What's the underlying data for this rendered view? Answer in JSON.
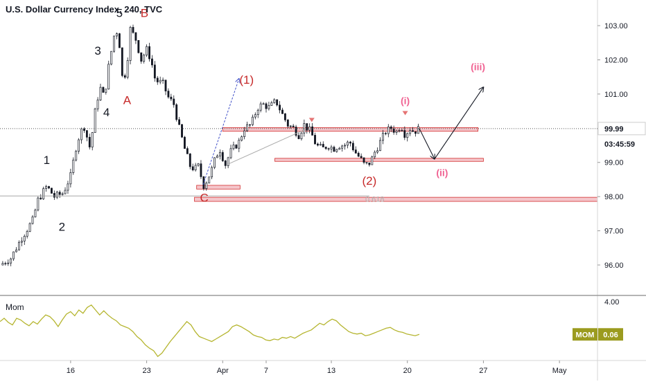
{
  "chart_data": {
    "type": "candlestick",
    "title": "U.S. Dollar Currency Index, 240, TVC",
    "price_axis": {
      "ticks": [
        "103.00",
        "102.00",
        "101.00",
        "99.00",
        "98.00",
        "97.00",
        "96.00"
      ],
      "tick_values": [
        103,
        102,
        101,
        99,
        98,
        97,
        96
      ],
      "ylim": [
        95.15,
        103.75
      ]
    },
    "last_price": {
      "value": 99.99,
      "label": "99.99",
      "countdown": "03:45:59"
    },
    "x_axis": {
      "ticks": [
        "16",
        "23",
        "Apr",
        "7",
        "13",
        "20",
        "27",
        "May"
      ],
      "tick_positions": [
        5,
        12,
        19,
        23,
        29,
        36,
        43,
        50
      ],
      "xlim": [
        -1.5,
        53.5
      ]
    },
    "price_path": [
      [
        -1.5,
        96.0
      ],
      [
        -0.5,
        96.2
      ],
      [
        0.5,
        96.8
      ],
      [
        1.5,
        97.3
      ],
      [
        2,
        97.9
      ],
      [
        2.8,
        98.3
      ],
      [
        3.5,
        98.0
      ],
      [
        4.3,
        98.1
      ],
      [
        5,
        98.6
      ],
      [
        5.6,
        99.6
      ],
      [
        6.2,
        100.1
      ],
      [
        6.8,
        99.4
      ],
      [
        7.3,
        100.6
      ],
      [
        7.7,
        101.2
      ],
      [
        8.1,
        100.9
      ],
      [
        8.5,
        101.8
      ],
      [
        9,
        102.7
      ],
      [
        9.4,
        102.9
      ],
      [
        9.7,
        101.5
      ],
      [
        10.1,
        101.6
      ],
      [
        10.5,
        102.9
      ],
      [
        11,
        102.6
      ],
      [
        11.5,
        102.0
      ],
      [
        12,
        102.3
      ],
      [
        12.4,
        102.0
      ],
      [
        12.8,
        101.4
      ],
      [
        13.5,
        101.3
      ],
      [
        14,
        100.9
      ],
      [
        14.5,
        100.7
      ],
      [
        15,
        100.0
      ],
      [
        15.5,
        99.4
      ],
      [
        16,
        98.9
      ],
      [
        16.4,
        98.8
      ],
      [
        16.8,
        98.9
      ],
      [
        17.2,
        98.3
      ],
      [
        17.6,
        98.5
      ],
      [
        18,
        98.8
      ],
      [
        18.4,
        99.2
      ],
      [
        18.8,
        99.4
      ],
      [
        19.2,
        98.9
      ],
      [
        19.7,
        99.3
      ],
      [
        20.5,
        99.6
      ],
      [
        21,
        100.0
      ],
      [
        21.6,
        100.1
      ],
      [
        22.2,
        100.6
      ],
      [
        22.7,
        100.7
      ],
      [
        23.3,
        100.6
      ],
      [
        23.9,
        100.8
      ],
      [
        24.5,
        100.4
      ],
      [
        25,
        100.1
      ],
      [
        25.5,
        100.0
      ],
      [
        26,
        99.8
      ],
      [
        26.5,
        100.1
      ],
      [
        27.1,
        99.9
      ],
      [
        27.6,
        99.5
      ],
      [
        28.2,
        99.4
      ],
      [
        28.7,
        99.5
      ],
      [
        29.2,
        99.4
      ],
      [
        29.7,
        99.5
      ],
      [
        30.2,
        99.5
      ],
      [
        30.7,
        99.6
      ],
      [
        31.2,
        99.3
      ],
      [
        31.7,
        99.1
      ],
      [
        32.1,
        98.9
      ],
      [
        32.6,
        99.0
      ],
      [
        33,
        99.3
      ],
      [
        33.5,
        99.6
      ],
      [
        34,
        99.9
      ],
      [
        34.5,
        100.0
      ],
      [
        35,
        99.9
      ],
      [
        35.4,
        100.1
      ],
      [
        35.8,
        99.8
      ],
      [
        36.2,
        100.0
      ],
      [
        36.6,
        99.9
      ],
      [
        37.1,
        99.99
      ]
    ],
    "momentum": {
      "label": "Mom",
      "badge": "MOM",
      "value": "0.06",
      "axis_tick": "4.00",
      "ylim": [
        -3.0,
        4.5
      ],
      "values": [
        1.6,
        2.0,
        1.5,
        1.2,
        2.0,
        1.8,
        1.4,
        1.1,
        1.6,
        1.3,
        1.9,
        2.4,
        2.2,
        1.7,
        1.0,
        1.8,
        2.5,
        2.8,
        2.3,
        3.0,
        2.6,
        3.3,
        3.6,
        3.0,
        2.4,
        2.9,
        2.4,
        2.0,
        1.7,
        1.2,
        1.0,
        0.8,
        0.4,
        -0.2,
        -0.6,
        -1.2,
        -1.6,
        -1.9,
        -2.6,
        -2.2,
        -1.5,
        -0.8,
        -0.2,
        0.4,
        1.0,
        1.6,
        1.2,
        0.4,
        -0.2,
        -0.4,
        -0.6,
        -0.8,
        -0.5,
        -0.2,
        0.1,
        0.4,
        1.0,
        1.2,
        1.0,
        0.7,
        0.4,
        0.0,
        -0.2,
        -0.3,
        -0.6,
        -0.7,
        -0.5,
        -0.6,
        -0.3,
        -0.4,
        -0.2,
        -0.4,
        -0.1,
        0.2,
        0.4,
        0.6,
        1.0,
        1.4,
        1.2,
        1.6,
        1.9,
        1.7,
        1.2,
        0.8,
        0.4,
        0.2,
        0.1,
        0.2,
        -0.1,
        0.0,
        0.2,
        0.4,
        0.6,
        0.8,
        0.9,
        0.6,
        0.4,
        0.3,
        0.1,
        0.0,
        -0.1,
        0.06
      ]
    },
    "annotations": [
      {
        "text": "1",
        "x": 2.8,
        "y": 98.95,
        "color": "#131722"
      },
      {
        "text": "2",
        "x": 4.2,
        "y": 97.0,
        "color": "#131722"
      },
      {
        "text": "3",
        "x": 7.5,
        "y": 102.15,
        "color": "#131722"
      },
      {
        "text": "4",
        "x": 8.3,
        "y": 100.35,
        "color": "#131722"
      },
      {
        "text": "5",
        "x": 9.5,
        "y": 103.25,
        "color": "#131722"
      },
      {
        "text": "B",
        "x": 11.8,
        "y": 103.25,
        "color": "#c62828"
      },
      {
        "text": "A",
        "x": 10.2,
        "y": 100.7,
        "color": "#c62828"
      },
      {
        "text": "C",
        "x": 17.3,
        "y": 97.85,
        "color": "#c62828"
      },
      {
        "text": "(1)",
        "x": 21.2,
        "y": 101.3,
        "color": "#c62828"
      },
      {
        "text": "(2)",
        "x": 32.5,
        "y": 98.35,
        "color": "#c62828"
      },
      {
        "text": "(i)",
        "x": 35.8,
        "y": 100.7,
        "color": "#f06292"
      },
      {
        "text": "(ii)",
        "x": 39.2,
        "y": 98.6,
        "color": "#f06292"
      },
      {
        "text": "(iii)",
        "x": 42.5,
        "y": 101.7,
        "color": "#f06292"
      },
      {
        "text": "0.618",
        "x": 33.0,
        "y": 97.85,
        "color": "#b0b0b0"
      }
    ],
    "zones": [
      {
        "x1": 16.6,
        "x2": 20.6,
        "y1": 98.22,
        "y2": 98.33
      },
      {
        "x1": 16.4,
        "x2": 53.5,
        "y1": 97.86,
        "y2": 97.98
      },
      {
        "x1": 19.0,
        "x2": 42.5,
        "y1": 99.91,
        "y2": 100.02
      },
      {
        "x1": 23.8,
        "x2": 43.0,
        "y1": 99.03,
        "y2": 99.12
      }
    ],
    "lines": [
      {
        "points": [
          [
            -1.5,
            98.02
          ],
          [
            32.5,
            98.02
          ]
        ],
        "color": "#999999",
        "dash": false,
        "width": 0.8
      },
      {
        "points": [
          [
            19.5,
            98.95
          ],
          [
            26.5,
            99.95
          ]
        ],
        "color": "#aaaaaa",
        "dash": false,
        "width": 1
      },
      {
        "points": [
          [
            17.2,
            98.35
          ],
          [
            20.5,
            101.45
          ]
        ],
        "color": "#4050c8",
        "dash": true,
        "width": 1,
        "arrow": true
      },
      {
        "points": [
          [
            37.1,
            99.99
          ],
          [
            38.5,
            99.1
          ]
        ],
        "color": "#131722",
        "dash": false,
        "width": 1.1,
        "arrow": true
      },
      {
        "points": [
          [
            38.5,
            99.1
          ],
          [
            43.0,
            101.2
          ]
        ],
        "color": "#131722",
        "dash": false,
        "width": 1.1,
        "arrow": true
      }
    ],
    "markers": [
      {
        "x": 27.2,
        "y": 100.2
      },
      {
        "x": 35.8,
        "y": 100.4
      }
    ]
  }
}
